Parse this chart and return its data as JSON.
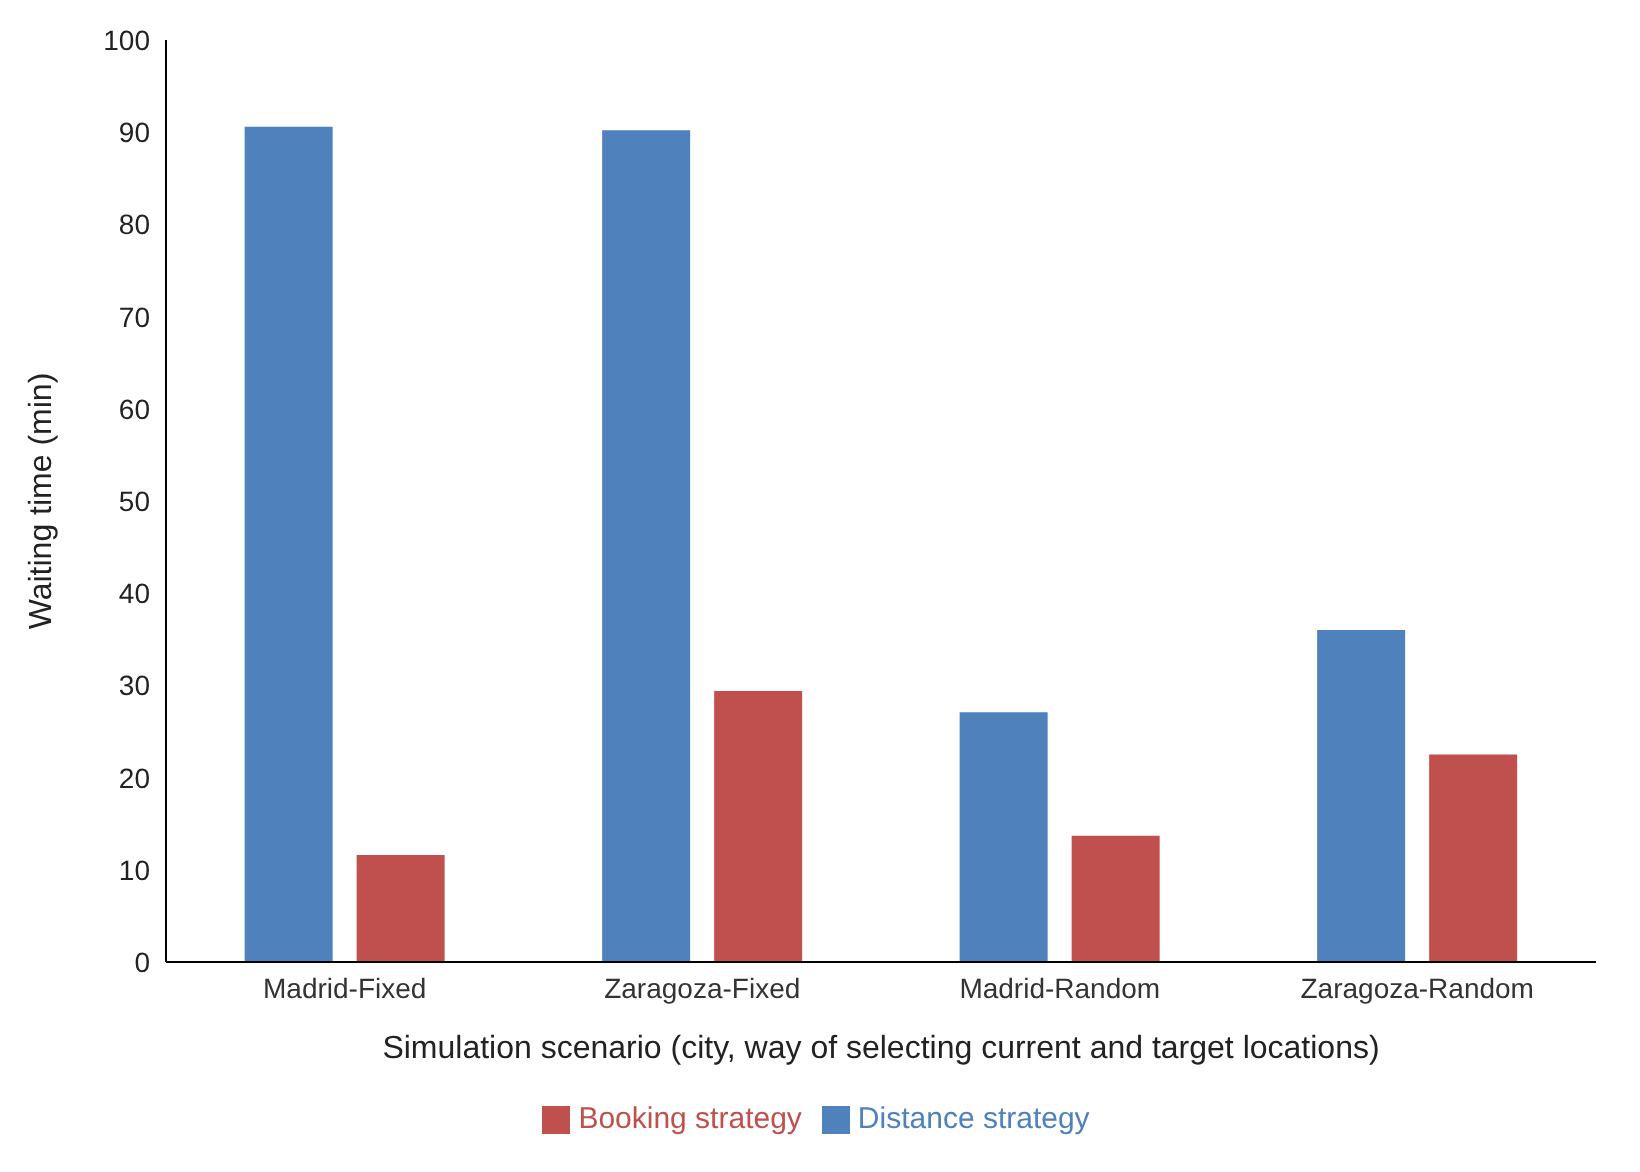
{
  "chart_data": {
    "type": "bar",
    "xlabel": "Simulation scenario (city, way of selecting current and target locations)",
    "ylabel": "Waiting time (min)",
    "categories": [
      "Madrid-Fixed",
      "Zaragoza-Fixed",
      "Madrid-Random",
      "Zaragoza-Random"
    ],
    "series": [
      {
        "name": "Distance strategy",
        "color": "#4f81bd",
        "values": [
          90.6,
          90.2,
          27.1,
          36.0
        ]
      },
      {
        "name": "Booking strategy",
        "color": "#c0504d",
        "values": [
          11.6,
          29.4,
          13.7,
          22.5
        ]
      }
    ],
    "ylim": [
      0,
      100
    ],
    "yticks": [
      0,
      10,
      20,
      30,
      40,
      50,
      60,
      70,
      80,
      90,
      100
    ],
    "grid": false,
    "legend": "bottom"
  }
}
